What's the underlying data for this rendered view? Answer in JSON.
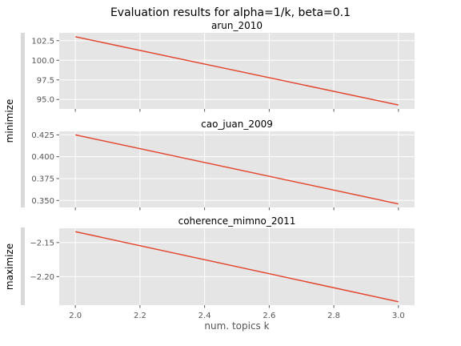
{
  "figure": {
    "title": "Evaluation results for alpha=1/k, beta=0.1"
  },
  "groups": [
    {
      "label": "minimize"
    },
    {
      "label": "maximize"
    }
  ],
  "colors": {
    "line": "#e24a33",
    "panel_bg": "#e5e5e5",
    "grid": "#ffffff",
    "group_bar": "#d9d9d9"
  },
  "chart_data": [
    {
      "type": "line",
      "title": "arun_2010",
      "xlabel": "",
      "ylabel": "",
      "x": [
        2.0,
        3.0
      ],
      "y": [
        103.0,
        94.3
      ],
      "xlim": [
        1.95,
        3.05
      ],
      "ylim": [
        93.8,
        103.5
      ],
      "yticks": [
        95.0,
        97.5,
        100.0,
        102.5
      ],
      "ytick_labels": [
        "95.0",
        "97.5",
        "100.0",
        "102.5"
      ],
      "xticks": [
        2.0,
        2.2,
        2.4,
        2.6,
        2.8,
        3.0
      ],
      "xtick_labels": [],
      "grid": true
    },
    {
      "type": "line",
      "title": "cao_juan_2009",
      "xlabel": "",
      "ylabel": "",
      "x": [
        2.0,
        3.0
      ],
      "y": [
        0.425,
        0.346
      ],
      "xlim": [
        1.95,
        3.05
      ],
      "ylim": [
        0.342,
        0.429
      ],
      "yticks": [
        0.35,
        0.375,
        0.4,
        0.425
      ],
      "ytick_labels": [
        "0.350",
        "0.375",
        "0.400",
        "0.425"
      ],
      "xticks": [
        2.0,
        2.2,
        2.4,
        2.6,
        2.8,
        3.0
      ],
      "xtick_labels": [],
      "grid": true
    },
    {
      "type": "line",
      "title": "coherence_mimno_2011",
      "xlabel": "num. topics k",
      "ylabel": "",
      "x": [
        2.0,
        3.0
      ],
      "y": [
        -2.134,
        -2.237
      ],
      "xlim": [
        1.95,
        3.05
      ],
      "ylim": [
        -2.242,
        -2.129
      ],
      "yticks": [
        -2.2,
        -2.15
      ],
      "ytick_labels": [
        "−2.20",
        "−2.15"
      ],
      "xticks": [
        2.0,
        2.2,
        2.4,
        2.6,
        2.8,
        3.0
      ],
      "xtick_labels": [
        "2.0",
        "2.2",
        "2.4",
        "2.6",
        "2.8",
        "3.0"
      ],
      "grid": true
    }
  ]
}
